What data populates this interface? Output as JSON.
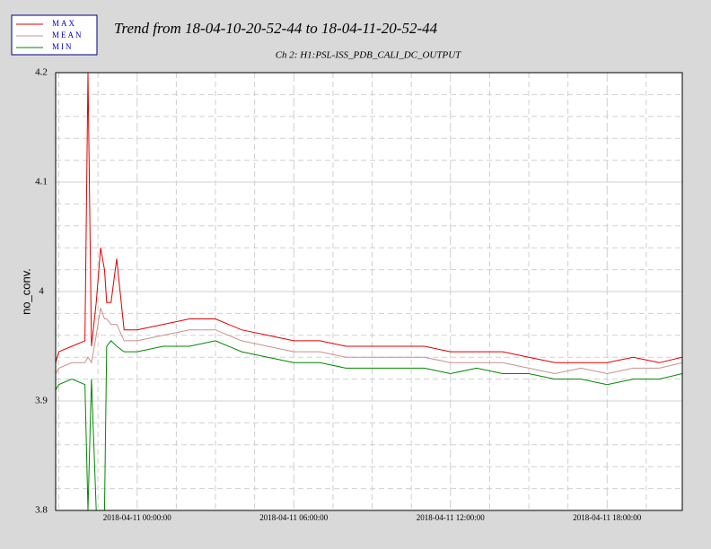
{
  "chart_data": {
    "type": "line",
    "title": "Trend from 18-04-10-20-52-44 to 18-04-11-20-52-44",
    "subtitle": "Ch 2: H1:PSL-ISS_PDB_CALI_DC_OUTPUT",
    "y_label": "no_conv.",
    "x": [
      "2018-04-10 20:52:44",
      "2018-04-10 21:00:00",
      "2018-04-10 21:30:00",
      "2018-04-10 22:00:00",
      "2018-04-10 22:07:00",
      "2018-04-10 22:15:00",
      "2018-04-10 22:26:00",
      "2018-04-10 22:36:00",
      "2018-04-10 22:45:00",
      "2018-04-10 22:50:00",
      "2018-04-10 23:00:00",
      "2018-04-10 23:13:00",
      "2018-04-10 23:30:00",
      "2018-04-11 00:00:00",
      "2018-04-11 01:00:00",
      "2018-04-11 02:00:00",
      "2018-04-11 03:00:00",
      "2018-04-11 04:00:00",
      "2018-04-11 05:00:00",
      "2018-04-11 06:00:00",
      "2018-04-11 07:00:00",
      "2018-04-11 08:00:00",
      "2018-04-11 09:00:00",
      "2018-04-11 10:00:00",
      "2018-04-11 11:00:00",
      "2018-04-11 12:00:00",
      "2018-04-11 13:00:00",
      "2018-04-11 14:00:00",
      "2018-04-11 15:00:00",
      "2018-04-11 16:00:00",
      "2018-04-11 17:00:00",
      "2018-04-11 18:00:00",
      "2018-04-11 19:00:00",
      "2018-04-11 20:00:00",
      "2018-04-11 20:52:44"
    ],
    "series": [
      {
        "name": "MAX",
        "color": "#e00000",
        "values": [
          3.935,
          3.945,
          3.95,
          3.955,
          4.2,
          3.95,
          3.99,
          4.04,
          4.02,
          3.99,
          3.99,
          4.03,
          3.965,
          3.965,
          3.97,
          3.975,
          3.975,
          3.965,
          3.96,
          3.955,
          3.955,
          3.95,
          3.95,
          3.95,
          3.95,
          3.945,
          3.945,
          3.945,
          3.94,
          3.935,
          3.935,
          3.935,
          3.94,
          3.935,
          3.94
        ]
      },
      {
        "name": "MEAN",
        "color": "#c89090",
        "values": [
          3.925,
          3.93,
          3.935,
          3.935,
          3.94,
          3.935,
          3.96,
          3.985,
          3.975,
          3.975,
          3.97,
          3.97,
          3.955,
          3.955,
          3.96,
          3.965,
          3.965,
          3.955,
          3.95,
          3.945,
          3.945,
          3.94,
          3.94,
          3.94,
          3.94,
          3.935,
          3.935,
          3.935,
          3.93,
          3.925,
          3.93,
          3.925,
          3.93,
          3.93,
          3.935
        ]
      },
      {
        "name": "MIN",
        "color": "#008800",
        "values": [
          3.91,
          3.915,
          3.92,
          3.915,
          3.8,
          3.92,
          3.8,
          3.8,
          3.8,
          3.95,
          3.955,
          3.95,
          3.945,
          3.945,
          3.95,
          3.95,
          3.955,
          3.945,
          3.94,
          3.935,
          3.935,
          3.93,
          3.93,
          3.93,
          3.93,
          3.925,
          3.93,
          3.925,
          3.925,
          3.92,
          3.92,
          3.915,
          3.92,
          3.92,
          3.925
        ]
      }
    ],
    "xlim": [
      "2018-04-10 20:52:44",
      "2018-04-11 20:52:44"
    ],
    "xticks": [
      "2018-04-11 00:00:00",
      "2018-04-11 06:00:00",
      "2018-04-11 12:00:00",
      "2018-04-11 18:00:00"
    ],
    "ylim": [
      3.8,
      4.2
    ],
    "yticks": [
      3.8,
      3.9,
      4,
      4.1,
      4.2
    ],
    "minor_divisions": {
      "x": 4,
      "y": 5
    },
    "grid": true,
    "legend": "top-left"
  }
}
